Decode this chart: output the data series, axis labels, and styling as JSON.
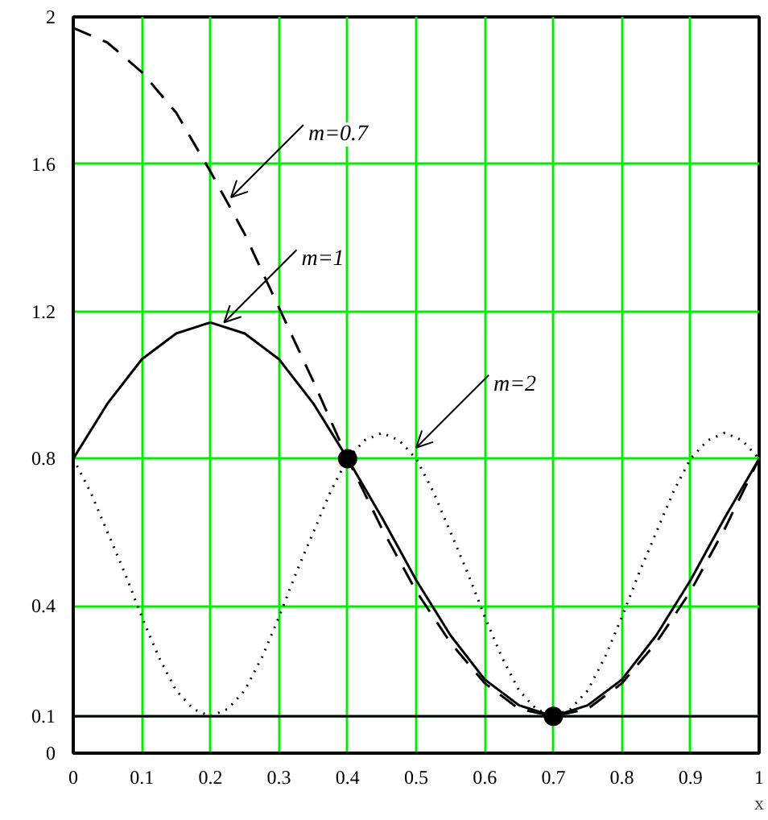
{
  "chart_data": {
    "type": "line",
    "xlabel": "x",
    "x": [
      0,
      0.05,
      0.1,
      0.15,
      0.2,
      0.25,
      0.3,
      0.35,
      0.4,
      0.45,
      0.5,
      0.55,
      0.6,
      0.65,
      0.7,
      0.75,
      0.8,
      0.85,
      0.9,
      0.95,
      1.0
    ],
    "series": [
      {
        "color": "#000000",
        "line_style": "dashed",
        "values": [
          1.97,
          1.93,
          1.85,
          1.74,
          1.58,
          1.41,
          1.21,
          1.01,
          0.8,
          0.61,
          0.44,
          0.3,
          0.19,
          0.12,
          0.1,
          0.12,
          0.19,
          0.3,
          0.44,
          0.61,
          0.8
        ]
      },
      {
        "color": "#000000",
        "line_style": "solid",
        "values": [
          0.8,
          0.95,
          1.07,
          1.14,
          1.17,
          1.14,
          1.07,
          0.95,
          0.8,
          0.64,
          0.47,
          0.32,
          0.2,
          0.13,
          0.1,
          0.13,
          0.2,
          0.32,
          0.47,
          0.64,
          0.8
        ]
      },
      {
        "color": "#000000",
        "line_style": "dotted",
        "x": [
          0,
          0.025,
          0.05,
          0.075,
          0.1,
          0.125,
          0.15,
          0.175,
          0.2,
          0.225,
          0.25,
          0.275,
          0.3,
          0.325,
          0.35,
          0.375,
          0.4,
          0.425,
          0.45,
          0.475,
          0.5,
          0.525,
          0.55,
          0.575,
          0.6,
          0.625,
          0.65,
          0.675,
          0.7,
          0.725,
          0.75,
          0.775,
          0.8,
          0.825,
          0.85,
          0.875,
          0.9,
          0.925,
          0.95,
          0.975,
          1.0
        ],
        "values": [
          0.8,
          0.71,
          0.6,
          0.49,
          0.37,
          0.26,
          0.17,
          0.12,
          0.1,
          0.12,
          0.17,
          0.26,
          0.37,
          0.49,
          0.6,
          0.71,
          0.8,
          0.85,
          0.87,
          0.85,
          0.8,
          0.71,
          0.6,
          0.49,
          0.37,
          0.26,
          0.17,
          0.12,
          0.1,
          0.12,
          0.17,
          0.26,
          0.37,
          0.49,
          0.6,
          0.71,
          0.8,
          0.85,
          0.87,
          0.85,
          0.8
        ]
      },
      {
        "type": "scatter",
        "marker": "circle",
        "color": "#000000",
        "x": [
          0.4,
          0.7
        ],
        "values": [
          0.8,
          0.1
        ]
      }
    ],
    "xlim": [
      0,
      1
    ],
    "xticks": [
      0,
      0.1,
      0.2,
      0.3,
      0.4,
      0.5,
      0.6,
      0.7,
      0.8,
      0.9,
      1
    ],
    "ylim": [
      0,
      2
    ],
    "yticks": [
      0,
      0.1,
      0.4,
      0.8,
      1.2,
      1.6,
      2
    ],
    "grid": true,
    "ref_lines": [
      {
        "axis": "y",
        "value": 0.1,
        "color": "#000000"
      }
    ],
    "annotations": [
      {
        "text": "m=0.7",
        "x": 0.23,
        "y": 1.51
      },
      {
        "text": "m=1",
        "x": 0.22,
        "y": 1.17
      },
      {
        "text": "m=2",
        "x": 0.5,
        "y": 0.83
      }
    ]
  }
}
